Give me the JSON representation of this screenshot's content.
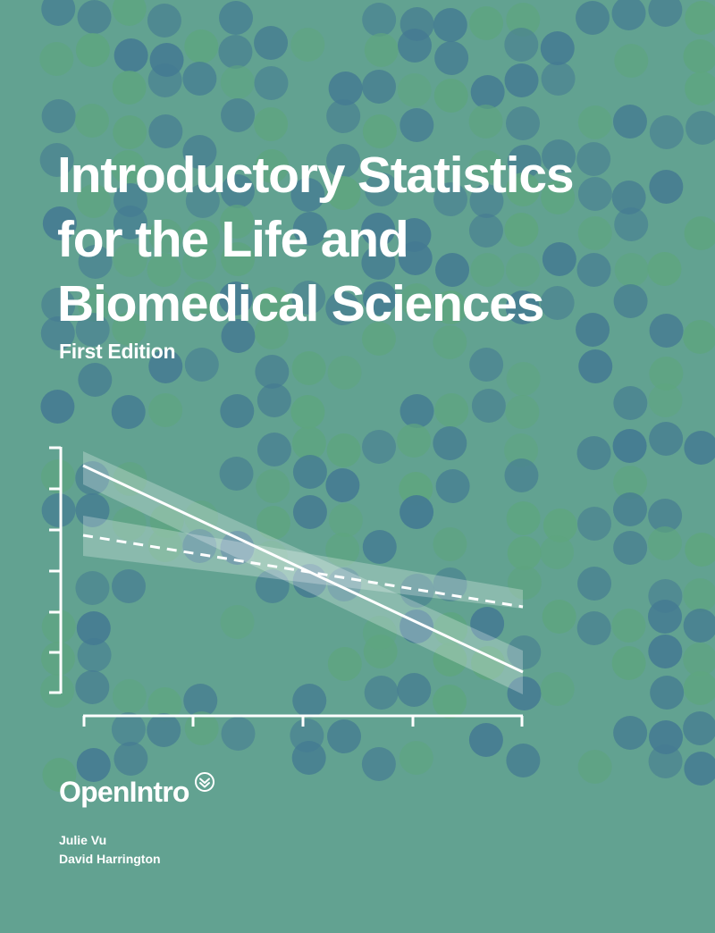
{
  "book": {
    "title_lines": [
      "Introductory Statistics",
      "for the Life and",
      "Biomedical Sciences"
    ],
    "edition": "First Edition",
    "publisher": "OpenIntro",
    "authors": [
      "Julie Vu",
      "David Harrington"
    ]
  },
  "colors": {
    "background": "#62a291",
    "dot_blue": "#447a92",
    "dot_green": "#5ea57f",
    "text": "#ffffff"
  },
  "icons": {
    "publisher_mark": "chevron-circle-icon"
  }
}
